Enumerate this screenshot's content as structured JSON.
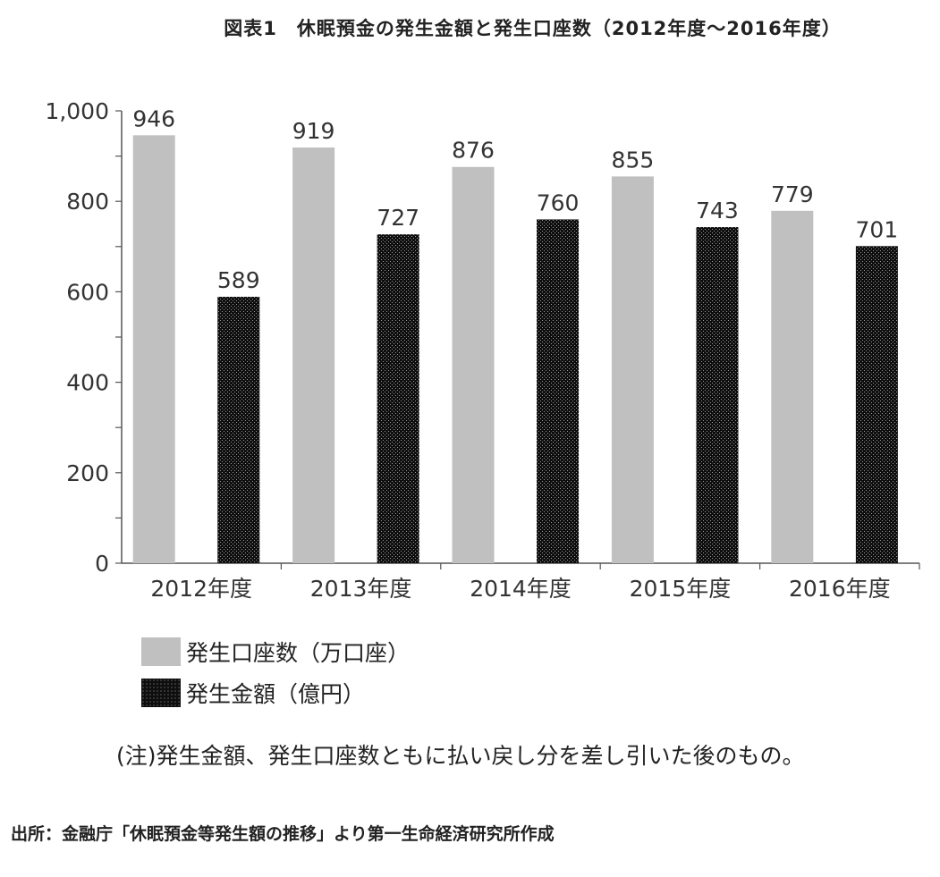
{
  "chart_data": {
    "type": "bar",
    "title": "図表1　休眠預金の発生金額と発生口座数（2012年度～2016年度）",
    "categories": [
      "2012年度",
      "2013年度",
      "2014年度",
      "2015年度",
      "2016年度"
    ],
    "series": [
      {
        "name": "発生口座数（万口座）",
        "values": [
          946,
          919,
          876,
          855,
          779
        ],
        "color": "#c0c0c0",
        "pattern": "solid"
      },
      {
        "name": "発生金額（億円）",
        "values": [
          589,
          727,
          760,
          743,
          701
        ],
        "color": "#1a1a1a",
        "pattern": "dotted"
      }
    ],
    "ylim": [
      0,
      1000
    ],
    "yticks": [
      0,
      200,
      400,
      600,
      800,
      1000
    ],
    "ytick_labels": [
      "0",
      "200",
      "400",
      "600",
      "800",
      "1,000"
    ],
    "xlabel": "",
    "ylabel": "",
    "grid": false,
    "legend_position": "bottom-left",
    "data_labels": true
  },
  "note": "(注)発生金額、発生口座数ともに払い戻し分を差し引いた後のもの。",
  "source": "出所：金融庁「休眠預金等発生額の推移」より第一生命経済研究所作成"
}
